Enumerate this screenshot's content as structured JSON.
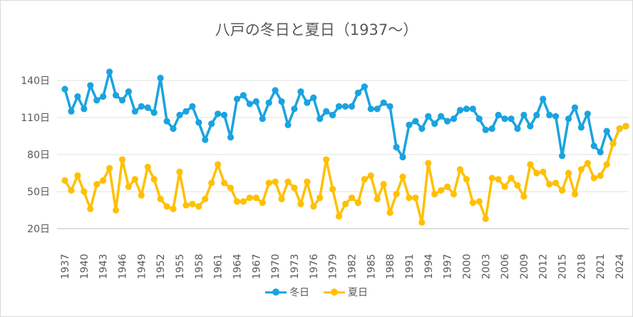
{
  "chart_data": {
    "type": "line",
    "title": "八戸の冬日と夏日（1937～）",
    "xlabel": "",
    "ylabel": "",
    "ylim": [
      20,
      150
    ],
    "yticks": [
      20,
      50,
      80,
      110,
      140
    ],
    "ytick_labels": [
      "20日",
      "50日",
      "80日",
      "110日",
      "140日"
    ],
    "ytick_suffix": "日",
    "xtick_labels": [
      "1937",
      "1940",
      "1943",
      "1946",
      "1949",
      "1952",
      "1955",
      "1958",
      "1961",
      "1964",
      "1967",
      "1970",
      "1973",
      "1976",
      "1979",
      "1982",
      "1985",
      "1988",
      "1991",
      "1994",
      "1997",
      "2000",
      "2003",
      "2006",
      "2009",
      "2012",
      "2015",
      "2018",
      "2021",
      "2024"
    ],
    "legend_position": "bottom",
    "grid": true,
    "x": [
      1937,
      1938,
      1939,
      1940,
      1941,
      1942,
      1943,
      1944,
      1945,
      1946,
      1947,
      1948,
      1949,
      1950,
      1951,
      1952,
      1953,
      1954,
      1955,
      1956,
      1957,
      1958,
      1959,
      1960,
      1961,
      1962,
      1963,
      1964,
      1965,
      1966,
      1967,
      1968,
      1969,
      1970,
      1971,
      1972,
      1973,
      1974,
      1975,
      1976,
      1977,
      1978,
      1979,
      1980,
      1981,
      1982,
      1983,
      1984,
      1985,
      1986,
      1987,
      1988,
      1989,
      1990,
      1991,
      1992,
      1993,
      1994,
      1995,
      1996,
      1997,
      1998,
      1999,
      2000,
      2001,
      2002,
      2003,
      2004,
      2005,
      2006,
      2007,
      2008,
      2009,
      2010,
      2011,
      2012,
      2013,
      2014,
      2015,
      2016,
      2017,
      2018,
      2019,
      2020,
      2021,
      2022,
      2023,
      2024,
      2025
    ],
    "series": [
      {
        "name": "冬日",
        "color": "#1aa3e0",
        "values": [
          133,
          115,
          127,
          117,
          136,
          124,
          127,
          147,
          128,
          124,
          131,
          115,
          119,
          118,
          114,
          142,
          107,
          101,
          112,
          115,
          119,
          106,
          92,
          105,
          113,
          112,
          94,
          125,
          128,
          121,
          123,
          109,
          122,
          132,
          123,
          104,
          117,
          131,
          122,
          126,
          109,
          115,
          112,
          119,
          119,
          119,
          130,
          135,
          117,
          117,
          122,
          119,
          86,
          78,
          104,
          107,
          101,
          111,
          105,
          111,
          107,
          109,
          116,
          117,
          117,
          109,
          100,
          101,
          112,
          109,
          109,
          101,
          112,
          103,
          112,
          125,
          112,
          111,
          79,
          109,
          118,
          102,
          113,
          87,
          82,
          99,
          89,
          101,
          103
        ]
      },
      {
        "name": "夏日",
        "color": "#ffc000",
        "values": [
          59,
          51,
          63,
          50,
          36,
          56,
          59,
          69,
          35,
          76,
          54,
          60,
          47,
          70,
          60,
          44,
          38,
          36,
          66,
          39,
          40,
          38,
          44,
          57,
          72,
          57,
          53,
          42,
          42,
          45,
          45,
          41,
          57,
          58,
          44,
          58,
          53,
          40,
          58,
          38,
          45,
          76,
          52,
          30,
          40,
          45,
          41,
          60,
          63,
          44,
          56,
          33,
          48,
          62,
          45,
          45,
          25,
          73,
          48,
          51,
          54,
          48,
          68,
          60,
          41,
          42,
          28,
          61,
          60,
          54,
          61,
          55,
          46,
          72,
          65,
          66,
          56,
          57,
          51,
          65,
          48,
          68,
          73,
          61,
          63,
          72,
          89,
          101,
          103
        ]
      }
    ]
  }
}
